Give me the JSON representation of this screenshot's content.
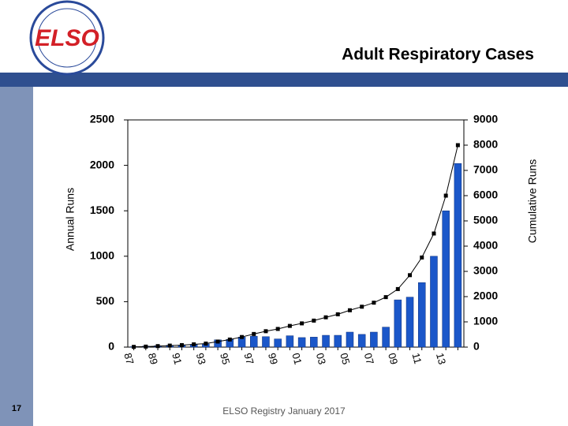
{
  "logo_text": "ELSO",
  "footer": "ELSO Registry January 2017",
  "page_number": "17",
  "chart_data": {
    "type": "bar",
    "title": "Adult Respiratory Cases",
    "categories": [
      "87",
      null,
      "89",
      null,
      "91",
      null,
      "93",
      null,
      "95",
      null,
      "97",
      null,
      "99",
      null,
      "01",
      null,
      "03",
      null,
      "05",
      null,
      "07",
      null,
      "09",
      null,
      "11",
      null,
      "13",
      null
    ],
    "series": [
      {
        "name": "Annual Runs",
        "type": "bar",
        "color": "#1b57c9",
        "axis": "y",
        "values": [
          5,
          10,
          15,
          20,
          20,
          30,
          35,
          80,
          85,
          110,
          120,
          115,
          90,
          125,
          105,
          110,
          130,
          130,
          165,
          140,
          165,
          220,
          520,
          550,
          710,
          1000,
          1500,
          2020
        ]
      },
      {
        "name": "Cumulative Runs",
        "type": "line",
        "color": "#000000",
        "axis": "y2",
        "values": [
          10,
          20,
          40,
          60,
          80,
          110,
          140,
          220,
          300,
          400,
          520,
          630,
          720,
          840,
          940,
          1050,
          1180,
          1300,
          1460,
          1600,
          1760,
          1980,
          2300,
          2850,
          3550,
          4500,
          6000,
          8000
        ]
      }
    ],
    "ylim": [
      0,
      2500
    ],
    "yticks": [
      0,
      500,
      1000,
      1500,
      2000,
      2500
    ],
    "y2lim": [
      0,
      9000
    ],
    "y2ticks": [
      0,
      1000,
      2000,
      3000,
      4000,
      5000,
      6000,
      7000,
      8000,
      9000
    ],
    "grid": false
  }
}
